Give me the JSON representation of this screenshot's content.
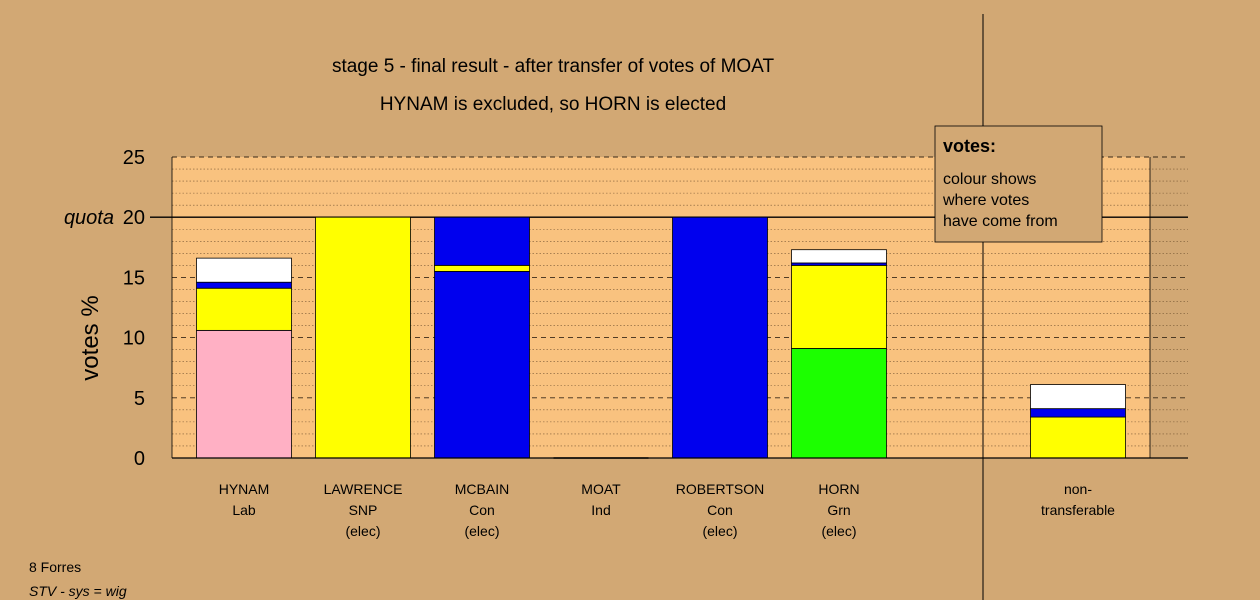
{
  "chart_data": {
    "type": "bar",
    "stacked": true,
    "title": "stage 5 - final result - after transfer of votes of MOAT",
    "subtitle": "HYNAM is excluded, so HORN is elected",
    "ylabel": "votes %",
    "ylim": [
      0,
      25
    ],
    "yticks": [
      0,
      5,
      10,
      15,
      20,
      25
    ],
    "quota": {
      "label": "quota",
      "value": 20
    },
    "legend": {
      "title": "votes:",
      "lines": [
        "colour shows",
        "where votes",
        "have come from"
      ],
      "placement": "top-right"
    },
    "colors": {
      "background": "#d2a874",
      "plot_area": "#f9c27f",
      "Lab": "#ffb0c4",
      "SNP": "#ffff00",
      "Con": "#0000ee",
      "Grn": "#1cff00",
      "Other": "#ffffff"
    },
    "categories": [
      {
        "name": "HYNAM",
        "party": "Lab",
        "status": "",
        "segments": [
          {
            "source": "Lab",
            "value": 10.6
          },
          {
            "source": "SNP",
            "value": 3.5
          },
          {
            "source": "Con",
            "value": 0.5
          },
          {
            "source": "Other",
            "value": 2.0
          }
        ]
      },
      {
        "name": "LAWRENCE",
        "party": "SNP",
        "status": "(elec)",
        "segments": [
          {
            "source": "SNP",
            "value": 20.0
          }
        ]
      },
      {
        "name": "MCBAIN",
        "party": "Con",
        "status": "(elec)",
        "segments": [
          {
            "source": "Con",
            "value": 15.5
          },
          {
            "source": "SNP",
            "value": 0.5
          },
          {
            "source": "Con",
            "value": 4.0
          }
        ]
      },
      {
        "name": "MOAT",
        "party": "Ind",
        "status": "",
        "segments": []
      },
      {
        "name": "ROBERTSON",
        "party": "Con",
        "status": "(elec)",
        "segments": [
          {
            "source": "Con",
            "value": 20.0
          }
        ]
      },
      {
        "name": "HORN",
        "party": "Grn",
        "status": "(elec)",
        "segments": [
          {
            "source": "Grn",
            "value": 9.1
          },
          {
            "source": "SNP",
            "value": 6.9
          },
          {
            "source": "Con",
            "value": 0.2
          },
          {
            "source": "Other",
            "value": 1.1
          }
        ]
      }
    ],
    "nontransferable": {
      "label_line1": "non-",
      "label_line2": "transferable",
      "segments": [
        {
          "source": "SNP",
          "value": 3.4
        },
        {
          "source": "Con",
          "value": 0.7
        },
        {
          "source": "Other",
          "value": 2.0
        }
      ]
    }
  },
  "footer": {
    "ward": "8 Forres",
    "system": "STV - sys = wig"
  }
}
